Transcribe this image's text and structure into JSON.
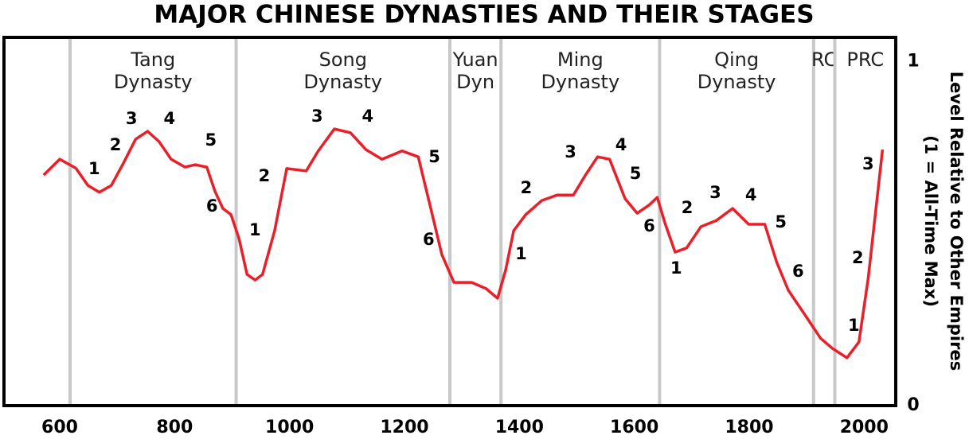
{
  "chart_data": {
    "type": "line",
    "title": "MAJOR CHINESE DYNASTIES AND THEIR STAGES",
    "ylabel": [
      "Level Relative to Other Empires",
      "(1 = All-Time Max)"
    ],
    "xlim": [
      503,
      2055
    ],
    "ylim": [
      0,
      1.07
    ],
    "xticks": [
      600,
      800,
      1000,
      1200,
      1400,
      1600,
      1800,
      2000
    ],
    "yticks": [
      0,
      1
    ],
    "color": "#e8202a",
    "x": [
      572,
      600,
      628,
      649,
      669,
      690,
      711,
      732,
      753,
      773,
      794,
      818,
      836,
      856,
      870,
      884,
      898,
      912,
      926,
      940,
      953,
      974,
      995,
      1029,
      1050,
      1078,
      1106,
      1133,
      1161,
      1196,
      1224,
      1245,
      1265,
      1286,
      1317,
      1342,
      1362,
      1376,
      1390,
      1411,
      1439,
      1466,
      1494,
      1515,
      1536,
      1557,
      1584,
      1605,
      1626,
      1640,
      1653,
      1671,
      1691,
      1716,
      1743,
      1771,
      1799,
      1827,
      1848,
      1868,
      1896,
      1924,
      1945,
      1970,
      1991,
      2007,
      2032
    ],
    "values": [
      0.67,
      0.716,
      0.69,
      0.64,
      0.62,
      0.64,
      0.705,
      0.774,
      0.797,
      0.767,
      0.716,
      0.693,
      0.7,
      0.693,
      0.624,
      0.573,
      0.555,
      0.485,
      0.381,
      0.365,
      0.381,
      0.508,
      0.689,
      0.682,
      0.74,
      0.804,
      0.793,
      0.744,
      0.716,
      0.74,
      0.723,
      0.578,
      0.439,
      0.358,
      0.358,
      0.34,
      0.312,
      0.393,
      0.508,
      0.555,
      0.596,
      0.612,
      0.612,
      0.67,
      0.723,
      0.716,
      0.601,
      0.559,
      0.583,
      0.605,
      0.532,
      0.446,
      0.458,
      0.52,
      0.538,
      0.573,
      0.527,
      0.527,
      0.416,
      0.335,
      0.266,
      0.196,
      0.166,
      0.139,
      0.185,
      0.37,
      0.744
    ],
    "dynasties": [
      {
        "lines": [
          "Tang",
          "Dynasty"
        ],
        "start": 618,
        "end": 907
      },
      {
        "lines": [
          "Song",
          "Dynasty"
        ],
        "start": 907,
        "end": 1279
      },
      {
        "lines": [
          "Yuan",
          "Dyn"
        ],
        "start": 1279,
        "end": 1368
      },
      {
        "lines": [
          "Ming",
          "Dynasty"
        ],
        "start": 1368,
        "end": 1644
      },
      {
        "lines": [
          "Qing",
          "Dynasty"
        ],
        "start": 1644,
        "end": 1912
      },
      {
        "lines": [
          "RC"
        ],
        "start": 1912,
        "end": 1949
      },
      {
        "lines": [
          "PRC"
        ],
        "start": 1949,
        "end": 2055
      }
    ],
    "annotations": [
      {
        "text": "1",
        "x": 660,
        "y": 0.686
      },
      {
        "text": "2",
        "x": 697,
        "y": 0.756
      },
      {
        "text": "3",
        "x": 725,
        "y": 0.832
      },
      {
        "text": "4",
        "x": 791,
        "y": 0.832
      },
      {
        "text": "5",
        "x": 863,
        "y": 0.77
      },
      {
        "text": "6",
        "x": 865,
        "y": 0.578
      },
      {
        "text": "1",
        "x": 940,
        "y": 0.508
      },
      {
        "text": "2",
        "x": 956,
        "y": 0.666
      },
      {
        "text": "3",
        "x": 1048,
        "y": 0.839
      },
      {
        "text": "4",
        "x": 1136,
        "y": 0.839
      },
      {
        "text": "5",
        "x": 1252,
        "y": 0.721
      },
      {
        "text": "6",
        "x": 1242,
        "y": 0.481
      },
      {
        "text": "1",
        "x": 1403,
        "y": 0.439
      },
      {
        "text": "2",
        "x": 1412,
        "y": 0.631
      },
      {
        "text": "3",
        "x": 1489,
        "y": 0.735
      },
      {
        "text": "4",
        "x": 1577,
        "y": 0.756
      },
      {
        "text": "5",
        "x": 1602,
        "y": 0.673
      },
      {
        "text": "6",
        "x": 1626,
        "y": 0.52
      },
      {
        "text": "1",
        "x": 1673,
        "y": 0.397
      },
      {
        "text": "2",
        "x": 1692,
        "y": 0.573
      },
      {
        "text": "3",
        "x": 1741,
        "y": 0.617
      },
      {
        "text": "4",
        "x": 1803,
        "y": 0.61
      },
      {
        "text": "5",
        "x": 1855,
        "y": 0.532
      },
      {
        "text": "6",
        "x": 1885,
        "y": 0.388
      },
      {
        "text": "1",
        "x": 1982,
        "y": 0.231
      },
      {
        "text": "2",
        "x": 1989,
        "y": 0.428
      },
      {
        "text": "3",
        "x": 2007,
        "y": 0.7
      }
    ]
  }
}
